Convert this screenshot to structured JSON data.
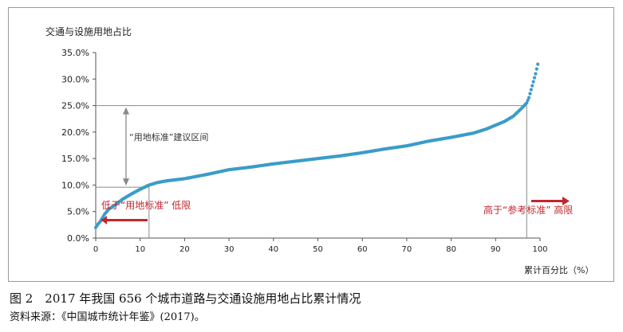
{
  "chart_data": {
    "type": "scatter",
    "title": "",
    "ylabel": "交通与设施用地占比",
    "xlabel": "累计百分比（%）",
    "xlim": [
      0,
      100
    ],
    "ylim": [
      0,
      35
    ],
    "x_ticks": [
      "0",
      "10",
      "20",
      "30",
      "40",
      "50",
      "60",
      "70",
      "80",
      "90",
      "100"
    ],
    "y_ticks": [
      "0.0%",
      "5.0%",
      "10.0%",
      "15.0%",
      "20.0%",
      "25.0%",
      "30.0%",
      "35.0%"
    ],
    "series": [
      {
        "color": "#3b9cc9",
        "points": [
          [
            0,
            2.0
          ],
          [
            0.5,
            2.6
          ],
          [
            1,
            3.1
          ],
          [
            2,
            4.5
          ],
          [
            3,
            5.5
          ],
          [
            4,
            6.0
          ],
          [
            6,
            7.3
          ],
          [
            8,
            8.3
          ],
          [
            10,
            9.2
          ],
          [
            11,
            9.6
          ],
          [
            12,
            10.0
          ],
          [
            14,
            10.5
          ],
          [
            16,
            10.8
          ],
          [
            20,
            11.2
          ],
          [
            25,
            12.0
          ],
          [
            30,
            12.9
          ],
          [
            35,
            13.4
          ],
          [
            40,
            14.0
          ],
          [
            45,
            14.5
          ],
          [
            50,
            15.0
          ],
          [
            55,
            15.5
          ],
          [
            60,
            16.1
          ],
          [
            65,
            16.8
          ],
          [
            70,
            17.4
          ],
          [
            75,
            18.3
          ],
          [
            80,
            19.0
          ],
          [
            85,
            19.8
          ],
          [
            88,
            20.6
          ],
          [
            90,
            21.3
          ],
          [
            92,
            22.0
          ],
          [
            94,
            23.0
          ],
          [
            95,
            23.8
          ],
          [
            96,
            24.6
          ],
          [
            97,
            25.5
          ],
          [
            97.5,
            26.5
          ],
          [
            98,
            28.0
          ],
          [
            98.5,
            29.5
          ],
          [
            99,
            31.0
          ],
          [
            99.5,
            32.8
          ]
        ]
      }
    ],
    "reference_lines": {
      "x_low": 12,
      "y_low": 9.6,
      "x_high": 97,
      "y_high": 25
    },
    "annotations": {
      "standard_range": "“用地标准”建议区间",
      "below": "低于“用地标准” 低限",
      "above": "高于“参考标准” 高限"
    },
    "colors": {
      "series": "#3b9cc9",
      "annotation_red": "#c0282d",
      "reference_line": "#8a8a8a"
    }
  },
  "caption": "图 2　2017 年我国 656 个城市道路与交通设施用地占比累计情况",
  "source": "资料来源：《中国城市统计年鉴》(2017)。"
}
